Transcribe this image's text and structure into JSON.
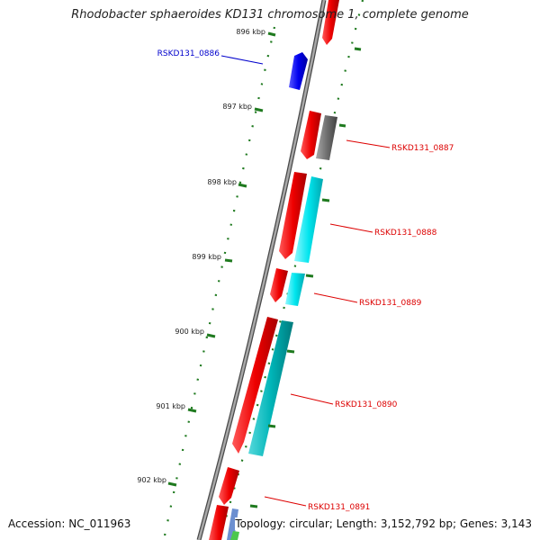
{
  "title": "Rhodobacter sphaeroides KD131 chromosome 1, complete genome",
  "footer": {
    "accession": "Accession: NC_011963",
    "summary": "Topology: circular; Length: 3,152,792 bp; Genes: 3,143"
  },
  "ticks": [
    {
      "label": "896 kbp",
      "position_bp": 896000
    },
    {
      "label": "897 kbp",
      "position_bp": 897000
    },
    {
      "label": "898 kbp",
      "position_bp": 898000
    },
    {
      "label": "899 kbp",
      "position_bp": 899000
    },
    {
      "label": "900 kbp",
      "position_bp": 900000
    },
    {
      "label": "901 kbp",
      "position_bp": 901000
    },
    {
      "label": "902 kbp",
      "position_bp": 902000
    }
  ],
  "genes": [
    {
      "name": "RSKD131_0886",
      "strand": "forward",
      "color": "#0000ee"
    },
    {
      "name": "RSKD131_0887",
      "strand": "reverse",
      "color": "#ee0000"
    },
    {
      "name": "RSKD131_0888",
      "strand": "reverse",
      "color": "#ee0000"
    },
    {
      "name": "RSKD131_0889",
      "strand": "reverse",
      "color": "#ee0000"
    },
    {
      "name": "RSKD131_0890",
      "strand": "reverse",
      "color": "#ee0000"
    },
    {
      "name": "RSKD131_0891",
      "strand": "reverse",
      "color": "#ee0000"
    }
  ],
  "colors": {
    "backbone": "#8c8c8c",
    "tick": "#1f7a1f",
    "cds_reverse": "#ee0000",
    "cds_forward": "#0000ee",
    "cog_cyan": "#00e5ee",
    "cog_teal": "#00b5b8",
    "cog_gray": "#707070"
  }
}
